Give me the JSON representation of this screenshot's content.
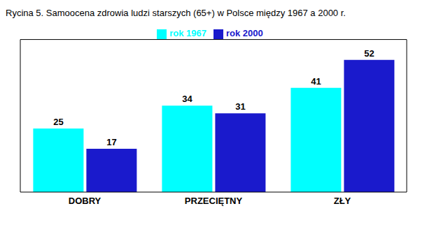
{
  "chart_data": {
    "type": "bar",
    "title": "Rycina 5. Samoocena zdrowia ludzi starszych (65+) w Polsce między 1967 a 2000 r.",
    "categories": [
      "DOBRY",
      "PRZECIĘTNY",
      "ZŁY"
    ],
    "series": [
      {
        "name": "rok 1967",
        "color": "#00FFFF",
        "values": [
          25,
          34,
          41
        ]
      },
      {
        "name": "rok 2000",
        "color": "#1A1ACC",
        "values": [
          17,
          31,
          52
        ]
      }
    ],
    "ylim": [
      0,
      60
    ],
    "data_labels": true,
    "tick_labels": "x",
    "legend": "upper center",
    "grid": false
  }
}
